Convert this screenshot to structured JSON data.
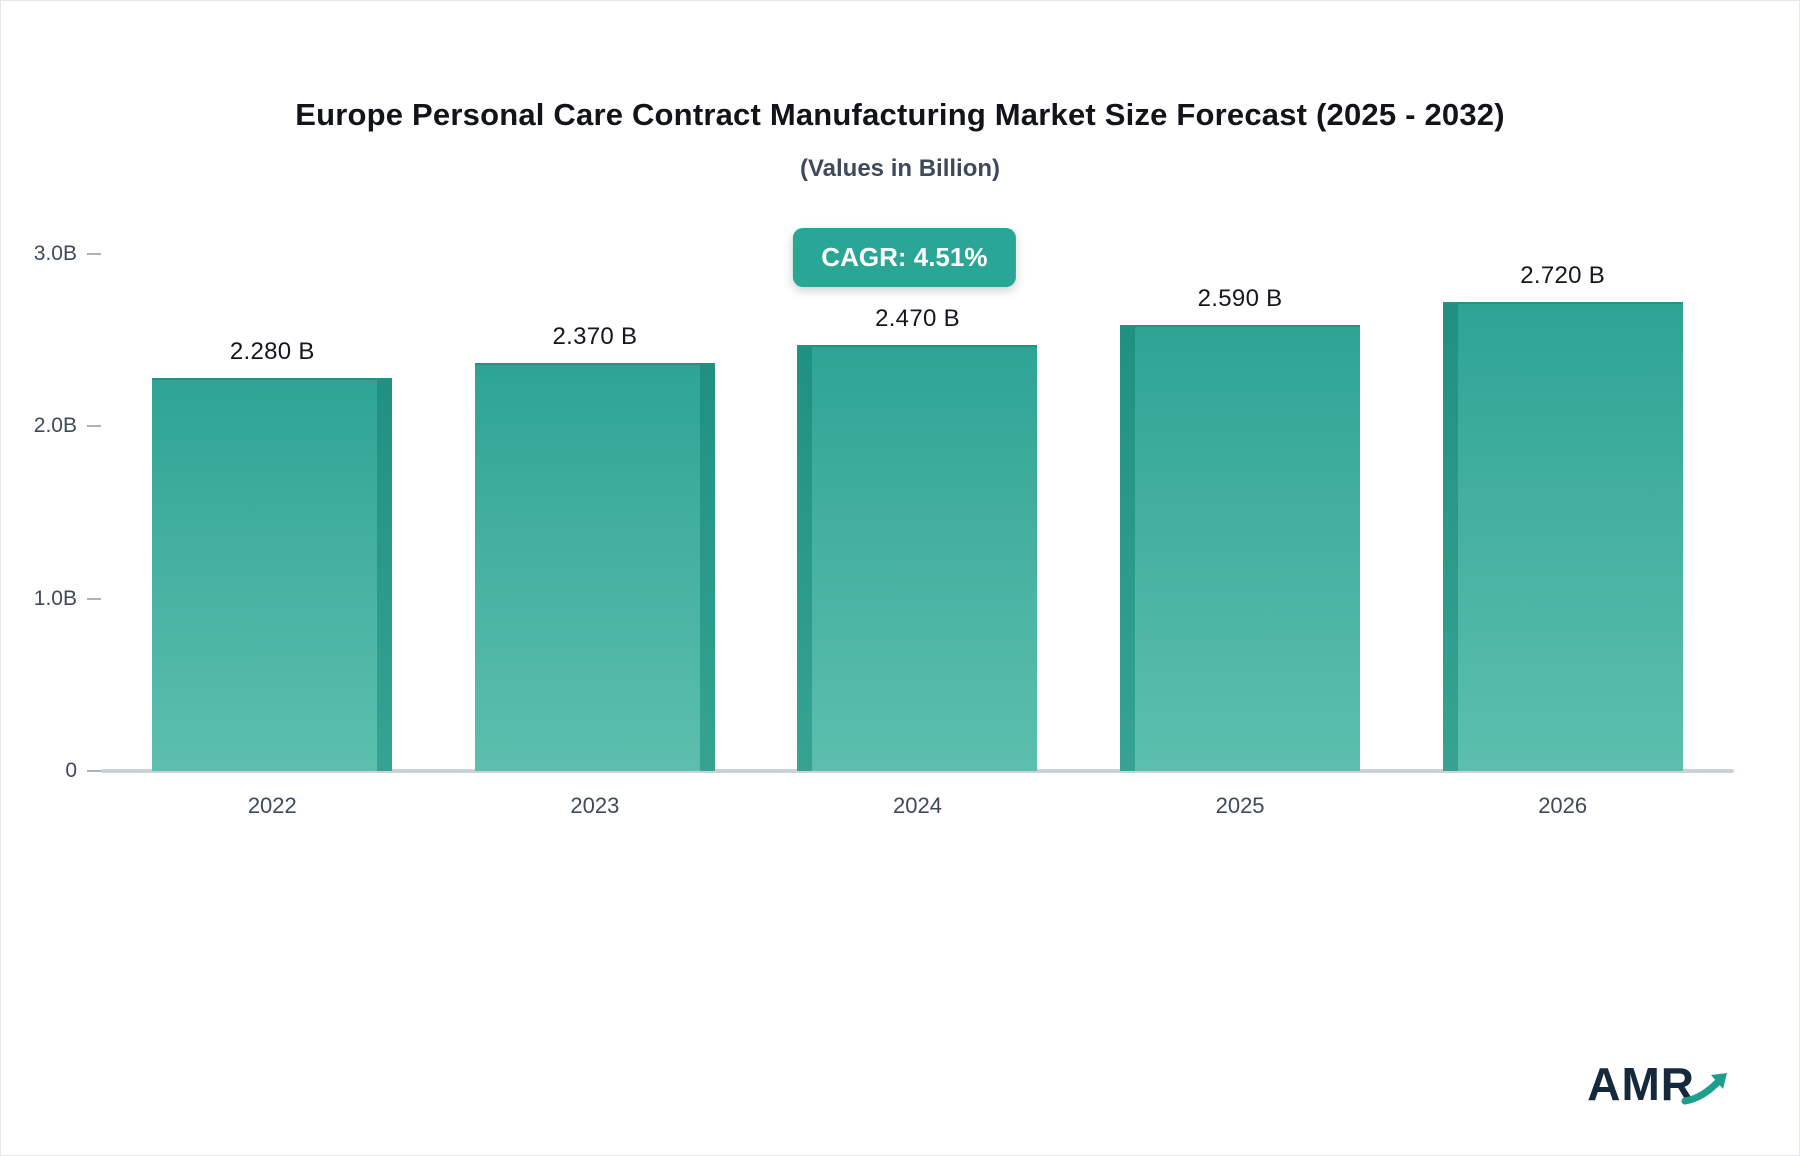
{
  "chart": {
    "title": "Europe Personal Care Contract Manufacturing Market Size Forecast (2025 - 2032)",
    "subtitle": "(Values in Billion)",
    "cagr_label": "CAGR: 4.51%"
  },
  "chart_data": {
    "type": "bar",
    "title": "Europe Personal Care Contract Manufacturing Market Size Forecast (2025 - 2032)",
    "subtitle": "(Values in Billion)",
    "categories": [
      "2022",
      "2023",
      "2024",
      "2025",
      "2026"
    ],
    "values": [
      2.28,
      2.37,
      2.47,
      2.59,
      2.72
    ],
    "value_labels": [
      "2.280 B",
      "2.370 B",
      "2.470 B",
      "2.590 B",
      "2.720 B"
    ],
    "xlabel": "",
    "ylabel": "",
    "ylim": [
      0,
      3.0
    ],
    "y_ticks": [
      {
        "value": 3.0,
        "label": "3.0B"
      },
      {
        "value": 2.0,
        "label": "2.0B"
      },
      {
        "value": 1.0,
        "label": "1.0B"
      },
      {
        "value": 0.0,
        "label": "0"
      }
    ],
    "grid": false,
    "legend": false,
    "annotations": [
      "CAGR: 4.51%"
    ],
    "bar_color_top": "#2da495",
    "bar_color_bottom": "#5cbfae",
    "bar_edge_color": "#1d8d7d",
    "accent_color": "#29a695"
  },
  "branding": {
    "logo_text": "AMR"
  }
}
